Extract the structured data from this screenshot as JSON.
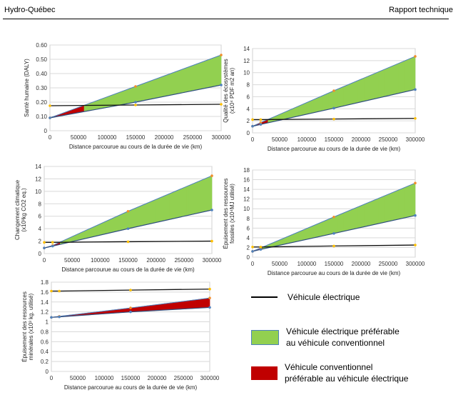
{
  "header": {
    "left": "Hydro-Québec",
    "right": "Rapport technique"
  },
  "legend": {
    "electric_label": "Véhicule électrique",
    "green_line1": "Véhicule électrique préférable",
    "green_line2": "au véhicule conventionnel",
    "red_line1": "Véhicule conventionnel",
    "red_line2": "préférable au véhicule électrique",
    "green_color": "#92d050",
    "red_color": "#c00000"
  },
  "colors": {
    "orange_marker": "#f28e2b",
    "blue_marker": "#4e81bd",
    "yellow_marker": "#ffc000"
  },
  "chart_data": [
    {
      "type": "line",
      "xlabel": "Distance parcourue au cours de la durée de vie (km)",
      "ylabel": [
        "Santé humaine (DALY)"
      ],
      "xlim": [
        0,
        300000
      ],
      "ylim": [
        0,
        0.6
      ],
      "xticks": [
        "0",
        "50000",
        "100000",
        "150000",
        "200000",
        "250000",
        "300000"
      ],
      "yticks": [
        "0",
        "0.10",
        "0.20",
        "0.30",
        "0.40",
        "0.50",
        "0.60"
      ],
      "ytick_values": [
        0,
        0.1,
        0.2,
        0.3,
        0.4,
        0.5,
        0.6
      ],
      "x": [
        0,
        150000,
        300000
      ],
      "series": [
        {
          "role": "upper",
          "values": [
            0.09,
            0.31,
            0.53
          ]
        },
        {
          "role": "lower",
          "values": [
            0.09,
            0.2,
            0.32
          ]
        },
        {
          "role": "electric",
          "values": [
            0.175,
            0.18,
            0.185
          ]
        }
      ]
    },
    {
      "type": "line",
      "xlabel": "Distance parcourue au cours de la durée de vie (km)",
      "ylabel": [
        "Qualité des écosystèmes",
        "(x10⁴ PDF m2 an)"
      ],
      "xlim": [
        0,
        300000
      ],
      "ylim": [
        0,
        14
      ],
      "xticks": [
        "0",
        "50000",
        "100000",
        "150000",
        "200000",
        "250000",
        "300000"
      ],
      "yticks": [
        "0",
        "2",
        "4",
        "6",
        "8",
        "10",
        "12",
        "14"
      ],
      "ytick_values": [
        0,
        2,
        4,
        6,
        8,
        10,
        12,
        14
      ],
      "x": [
        0,
        15000,
        150000,
        300000
      ],
      "series": [
        {
          "role": "upper",
          "values": [
            1.1,
            1.7,
            7.0,
            12.7
          ]
        },
        {
          "role": "lower",
          "values": [
            1.1,
            1.4,
            4.1,
            7.2
          ]
        },
        {
          "role": "electric",
          "values": [
            2.2,
            2.2,
            2.3,
            2.4
          ]
        }
      ]
    },
    {
      "type": "line",
      "xlabel": "Distance parcourue au cours de la durée de vie (km)",
      "ylabel": [
        "Changement climatique",
        "(x10³kg CO2 eq.)"
      ],
      "xlim": [
        0,
        300000
      ],
      "ylim": [
        0,
        14
      ],
      "xticks": [
        "0",
        "50000",
        "100000",
        "150000",
        "200000",
        "250000",
        "300000"
      ],
      "yticks": [
        "0",
        "2",
        "4",
        "6",
        "8",
        "10",
        "12",
        "14"
      ],
      "ytick_values": [
        0,
        2,
        4,
        6,
        8,
        10,
        12,
        14
      ],
      "x": [
        0,
        15000,
        150000,
        300000
      ],
      "series": [
        {
          "role": "upper",
          "values": [
            0.9,
            1.3,
            6.8,
            12.5
          ]
        },
        {
          "role": "lower",
          "values": [
            0.9,
            1.2,
            4.0,
            7.0
          ]
        },
        {
          "role": "electric",
          "values": [
            1.8,
            1.8,
            1.9,
            2.0
          ]
        }
      ]
    },
    {
      "type": "line",
      "xlabel": "Distance parcourue au cours de la durée de vie (km)",
      "ylabel": [
        "Épuisement des ressources",
        "fossiles (x10⁴MJ utilisé)"
      ],
      "xlim": [
        0,
        300000
      ],
      "ylim": [
        0,
        18
      ],
      "xticks": [
        "0",
        "50000",
        "100000",
        "150000",
        "200000",
        "250000",
        "300000"
      ],
      "yticks": [
        "0",
        "2",
        "4",
        "6",
        "8",
        "10",
        "12",
        "14",
        "16",
        "18"
      ],
      "ytick_values": [
        0,
        2,
        4,
        6,
        8,
        10,
        12,
        14,
        16,
        18
      ],
      "x": [
        0,
        15000,
        150000,
        300000
      ],
      "series": [
        {
          "role": "upper",
          "values": [
            1.2,
            1.9,
            8.3,
            15.3
          ]
        },
        {
          "role": "lower",
          "values": [
            1.2,
            1.6,
            4.9,
            8.6
          ]
        },
        {
          "role": "electric",
          "values": [
            2.1,
            2.1,
            2.3,
            2.5
          ]
        }
      ]
    },
    {
      "type": "line",
      "xlabel": "Distance parcourue au cours de la durée de vie (km)",
      "ylabel": [
        "Épuisement des ressources",
        "minérales (x10³ kg. utilisé)"
      ],
      "xlim": [
        0,
        300000
      ],
      "ylim": [
        0,
        1.8
      ],
      "xticks": [
        "0",
        "50000",
        "100000",
        "150000",
        "200000",
        "250000",
        "300000"
      ],
      "yticks": [
        "0",
        "0.2",
        "0.4",
        "0.6",
        "0.8",
        "1",
        "1.2",
        "1.4",
        "1.6",
        "1.8"
      ],
      "ytick_values": [
        0,
        0.2,
        0.4,
        0.6,
        0.8,
        1.0,
        1.2,
        1.4,
        1.6,
        1.8
      ],
      "x": [
        0,
        15000,
        150000,
        300000
      ],
      "series": [
        {
          "role": "upper",
          "values": [
            1.09,
            1.11,
            1.28,
            1.48
          ]
        },
        {
          "role": "lower",
          "values": [
            1.09,
            1.1,
            1.2,
            1.29
          ]
        },
        {
          "role": "electric",
          "values": [
            1.62,
            1.62,
            1.64,
            1.66
          ]
        }
      ]
    }
  ]
}
